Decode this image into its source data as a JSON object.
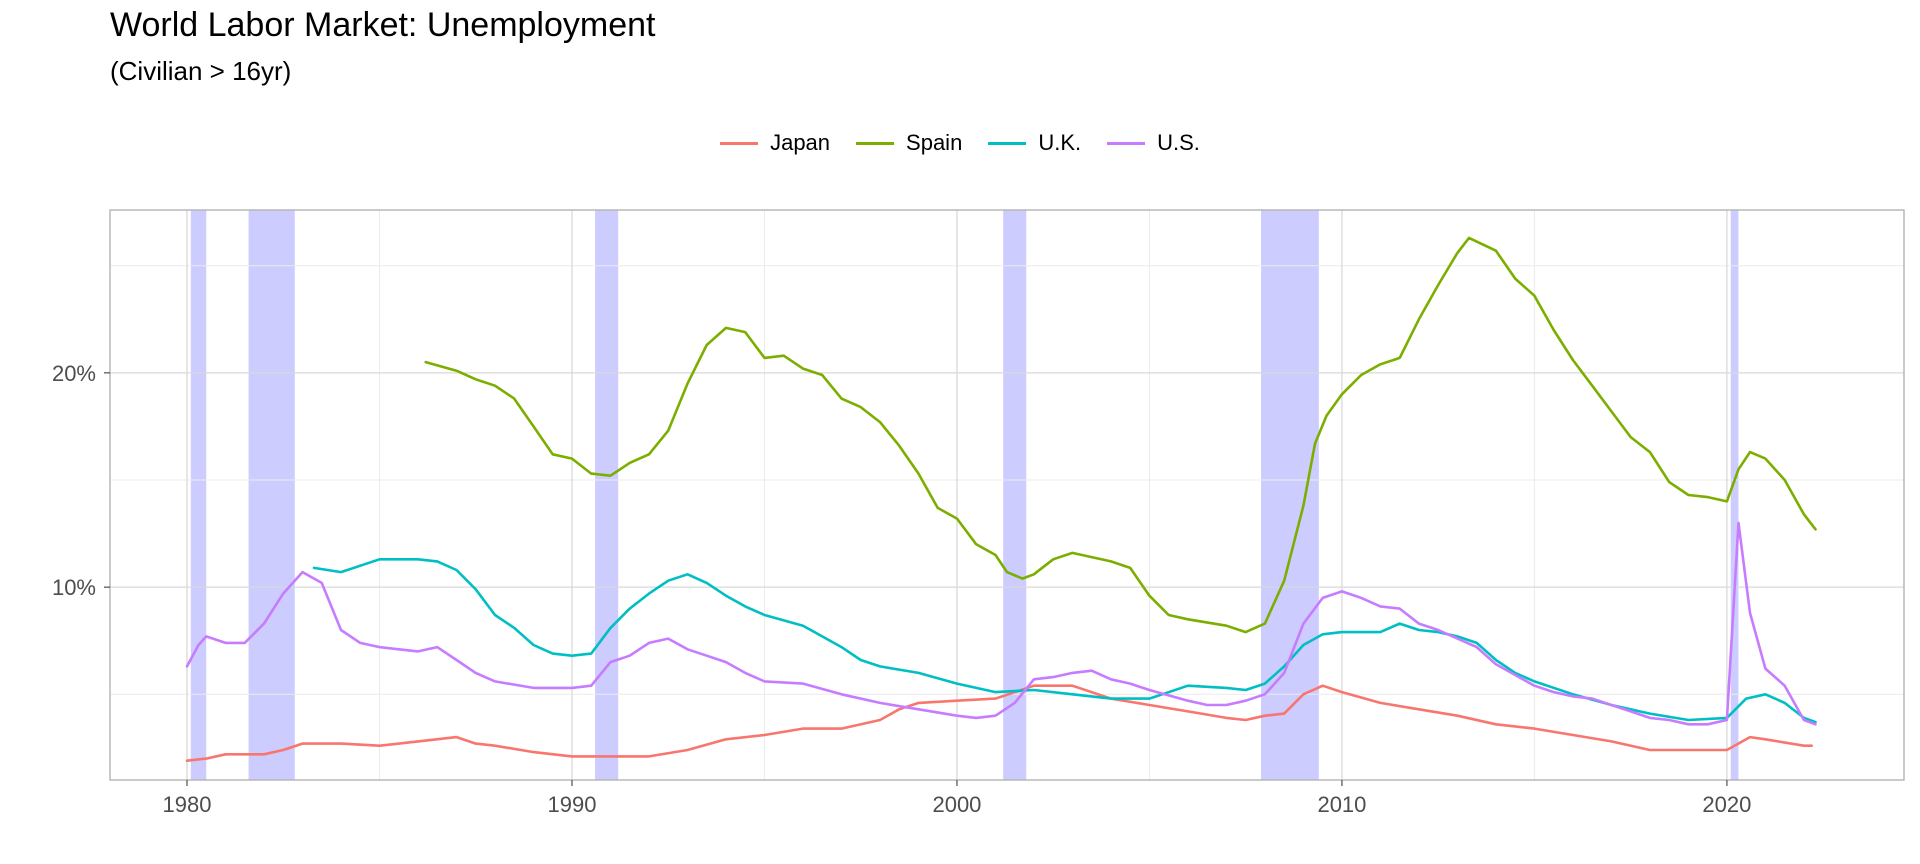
{
  "chart_data": {
    "type": "line",
    "title": "World Labor Market: Unemployment",
    "subtitle": "(Civilian > 16yr)",
    "xlabel": "",
    "ylabel": "",
    "xlim": [
      1978,
      2024.6
    ],
    "ylim": [
      1.0,
      27.6
    ],
    "x_ticks": [
      1980,
      1990,
      2000,
      2010,
      2020
    ],
    "x_tick_labels": [
      "1980",
      "1990",
      "2000",
      "2010",
      "2020"
    ],
    "y_ticks": [
      10,
      20
    ],
    "y_tick_labels": [
      "10%",
      "20%"
    ],
    "y_minor_ticks": [
      5,
      15,
      25
    ],
    "grid": true,
    "legend_position": "top-center",
    "shaded_periods": [
      {
        "start": 1980.1,
        "end": 1980.5
      },
      {
        "start": 1981.6,
        "end": 1982.8
      },
      {
        "start": 1990.6,
        "end": 1991.2
      },
      {
        "start": 2001.2,
        "end": 2001.8
      },
      {
        "start": 2007.9,
        "end": 2009.4
      },
      {
        "start": 2020.1,
        "end": 2020.3
      }
    ],
    "shade_color": "#ccccff",
    "series": [
      {
        "name": "Japan",
        "color": "#f8766d",
        "points": [
          [
            1980,
            1.9
          ],
          [
            1980.5,
            2.0
          ],
          [
            1981,
            2.2
          ],
          [
            1981.5,
            2.2
          ],
          [
            1982,
            2.2
          ],
          [
            1982.5,
            2.4
          ],
          [
            1983,
            2.7
          ],
          [
            1984,
            2.7
          ],
          [
            1985,
            2.6
          ],
          [
            1986,
            2.8
          ],
          [
            1987,
            3.0
          ],
          [
            1987.5,
            2.7
          ],
          [
            1988,
            2.6
          ],
          [
            1989,
            2.3
          ],
          [
            1990,
            2.1
          ],
          [
            1991,
            2.1
          ],
          [
            1992,
            2.1
          ],
          [
            1993,
            2.4
          ],
          [
            1994,
            2.9
          ],
          [
            1995,
            3.1
          ],
          [
            1996,
            3.4
          ],
          [
            1997,
            3.4
          ],
          [
            1998,
            3.8
          ],
          [
            1998.5,
            4.3
          ],
          [
            1999,
            4.6
          ],
          [
            2000,
            4.7
          ],
          [
            2001,
            4.8
          ],
          [
            2002,
            5.4
          ],
          [
            2003,
            5.4
          ],
          [
            2004,
            4.8
          ],
          [
            2005,
            4.5
          ],
          [
            2006,
            4.2
          ],
          [
            2007,
            3.9
          ],
          [
            2007.5,
            3.8
          ],
          [
            2008,
            4.0
          ],
          [
            2008.5,
            4.1
          ],
          [
            2009,
            5.0
          ],
          [
            2009.5,
            5.4
          ],
          [
            2010,
            5.1
          ],
          [
            2011,
            4.6
          ],
          [
            2012,
            4.3
          ],
          [
            2013,
            4.0
          ],
          [
            2014,
            3.6
          ],
          [
            2015,
            3.4
          ],
          [
            2016,
            3.1
          ],
          [
            2017,
            2.8
          ],
          [
            2018,
            2.4
          ],
          [
            2019,
            2.4
          ],
          [
            2020,
            2.4
          ],
          [
            2020.6,
            3.0
          ],
          [
            2021,
            2.9
          ],
          [
            2022,
            2.6
          ],
          [
            2022.2,
            2.6
          ]
        ]
      },
      {
        "name": "Spain",
        "color": "#7cae00",
        "points": [
          [
            1986.2,
            20.5
          ],
          [
            1987,
            20.1
          ],
          [
            1987.5,
            19.7
          ],
          [
            1988,
            19.4
          ],
          [
            1988.5,
            18.8
          ],
          [
            1989,
            17.5
          ],
          [
            1989.5,
            16.2
          ],
          [
            1990,
            16.0
          ],
          [
            1990.5,
            15.3
          ],
          [
            1991,
            15.2
          ],
          [
            1991.5,
            15.8
          ],
          [
            1992,
            16.2
          ],
          [
            1992.5,
            17.3
          ],
          [
            1993,
            19.5
          ],
          [
            1993.5,
            21.3
          ],
          [
            1994,
            22.1
          ],
          [
            1994.5,
            21.9
          ],
          [
            1995,
            20.7
          ],
          [
            1995.5,
            20.8
          ],
          [
            1996,
            20.2
          ],
          [
            1996.5,
            19.9
          ],
          [
            1997,
            18.8
          ],
          [
            1997.5,
            18.4
          ],
          [
            1998,
            17.7
          ],
          [
            1998.5,
            16.6
          ],
          [
            1999,
            15.3
          ],
          [
            1999.5,
            13.7
          ],
          [
            2000,
            13.2
          ],
          [
            2000.5,
            12.0
          ],
          [
            2001,
            11.5
          ],
          [
            2001.3,
            10.7
          ],
          [
            2001.7,
            10.4
          ],
          [
            2002,
            10.6
          ],
          [
            2002.5,
            11.3
          ],
          [
            2003,
            11.6
          ],
          [
            2004,
            11.2
          ],
          [
            2004.5,
            10.9
          ],
          [
            2005,
            9.6
          ],
          [
            2005.5,
            8.7
          ],
          [
            2006,
            8.5
          ],
          [
            2007,
            8.2
          ],
          [
            2007.5,
            7.9
          ],
          [
            2008,
            8.3
          ],
          [
            2008.5,
            10.3
          ],
          [
            2009,
            13.8
          ],
          [
            2009.3,
            16.7
          ],
          [
            2009.6,
            18.0
          ],
          [
            2010,
            19.0
          ],
          [
            2010.5,
            19.9
          ],
          [
            2011,
            20.4
          ],
          [
            2011.5,
            20.7
          ],
          [
            2012,
            22.5
          ],
          [
            2012.5,
            24.1
          ],
          [
            2013,
            25.6
          ],
          [
            2013.3,
            26.3
          ],
          [
            2014,
            25.7
          ],
          [
            2014.5,
            24.4
          ],
          [
            2015,
            23.6
          ],
          [
            2015.5,
            22.0
          ],
          [
            2016,
            20.6
          ],
          [
            2016.5,
            19.4
          ],
          [
            2017,
            18.2
          ],
          [
            2017.5,
            17.0
          ],
          [
            2018,
            16.3
          ],
          [
            2018.5,
            14.9
          ],
          [
            2019,
            14.3
          ],
          [
            2019.5,
            14.2
          ],
          [
            2020,
            14.0
          ],
          [
            2020.3,
            15.5
          ],
          [
            2020.6,
            16.3
          ],
          [
            2021,
            16.0
          ],
          [
            2021.5,
            15.0
          ],
          [
            2022,
            13.4
          ],
          [
            2022.3,
            12.7
          ]
        ]
      },
      {
        "name": "U.K.",
        "color": "#00bfc4",
        "points": [
          [
            1983.3,
            10.9
          ],
          [
            1984,
            10.7
          ],
          [
            1985,
            11.3
          ],
          [
            1986,
            11.3
          ],
          [
            1986.5,
            11.2
          ],
          [
            1987,
            10.8
          ],
          [
            1987.5,
            9.9
          ],
          [
            1988,
            8.7
          ],
          [
            1988.5,
            8.1
          ],
          [
            1989,
            7.3
          ],
          [
            1989.5,
            6.9
          ],
          [
            1990,
            6.8
          ],
          [
            1990.5,
            6.9
          ],
          [
            1991,
            8.1
          ],
          [
            1991.5,
            9.0
          ],
          [
            1992,
            9.7
          ],
          [
            1992.5,
            10.3
          ],
          [
            1993,
            10.6
          ],
          [
            1993.5,
            10.2
          ],
          [
            1994,
            9.6
          ],
          [
            1994.5,
            9.1
          ],
          [
            1995,
            8.7
          ],
          [
            1996,
            8.2
          ],
          [
            1997,
            7.2
          ],
          [
            1997.5,
            6.6
          ],
          [
            1998,
            6.3
          ],
          [
            1999,
            6.0
          ],
          [
            2000,
            5.5
          ],
          [
            2001,
            5.1
          ],
          [
            2002,
            5.2
          ],
          [
            2003,
            5.0
          ],
          [
            2004,
            4.8
          ],
          [
            2005,
            4.8
          ],
          [
            2006,
            5.4
          ],
          [
            2007,
            5.3
          ],
          [
            2007.5,
            5.2
          ],
          [
            2008,
            5.5
          ],
          [
            2008.5,
            6.3
          ],
          [
            2009,
            7.3
          ],
          [
            2009.5,
            7.8
          ],
          [
            2010,
            7.9
          ],
          [
            2011,
            7.9
          ],
          [
            2011.5,
            8.3
          ],
          [
            2012,
            8.0
          ],
          [
            2012.5,
            7.9
          ],
          [
            2013,
            7.7
          ],
          [
            2013.5,
            7.4
          ],
          [
            2014,
            6.6
          ],
          [
            2014.5,
            6.0
          ],
          [
            2015,
            5.6
          ],
          [
            2016,
            5.0
          ],
          [
            2017,
            4.5
          ],
          [
            2018,
            4.1
          ],
          [
            2019,
            3.8
          ],
          [
            2020,
            3.9
          ],
          [
            2020.5,
            4.8
          ],
          [
            2021,
            5.0
          ],
          [
            2021.5,
            4.6
          ],
          [
            2022,
            3.9
          ],
          [
            2022.3,
            3.7
          ]
        ]
      },
      {
        "name": "U.S.",
        "color": "#c77cff",
        "points": [
          [
            1980,
            6.3
          ],
          [
            1980.3,
            7.3
          ],
          [
            1980.5,
            7.7
          ],
          [
            1981,
            7.4
          ],
          [
            1981.5,
            7.4
          ],
          [
            1982,
            8.3
          ],
          [
            1982.5,
            9.7
          ],
          [
            1983,
            10.7
          ],
          [
            1983.5,
            10.2
          ],
          [
            1984,
            8.0
          ],
          [
            1984.5,
            7.4
          ],
          [
            1985,
            7.2
          ],
          [
            1986,
            7.0
          ],
          [
            1986.5,
            7.2
          ],
          [
            1987,
            6.6
          ],
          [
            1987.5,
            6.0
          ],
          [
            1988,
            5.6
          ],
          [
            1989,
            5.3
          ],
          [
            1990,
            5.3
          ],
          [
            1990.5,
            5.4
          ],
          [
            1991,
            6.5
          ],
          [
            1991.5,
            6.8
          ],
          [
            1992,
            7.4
          ],
          [
            1992.5,
            7.6
          ],
          [
            1993,
            7.1
          ],
          [
            1993.5,
            6.8
          ],
          [
            1994,
            6.5
          ],
          [
            1994.5,
            6.0
          ],
          [
            1995,
            5.6
          ],
          [
            1996,
            5.5
          ],
          [
            1997,
            5.0
          ],
          [
            1998,
            4.6
          ],
          [
            1999,
            4.3
          ],
          [
            2000,
            4.0
          ],
          [
            2000.5,
            3.9
          ],
          [
            2001,
            4.0
          ],
          [
            2001.5,
            4.6
          ],
          [
            2002,
            5.7
          ],
          [
            2002.5,
            5.8
          ],
          [
            2003,
            6.0
          ],
          [
            2003.5,
            6.1
          ],
          [
            2004,
            5.7
          ],
          [
            2004.5,
            5.5
          ],
          [
            2005,
            5.2
          ],
          [
            2006,
            4.7
          ],
          [
            2006.5,
            4.5
          ],
          [
            2007,
            4.5
          ],
          [
            2007.5,
            4.7
          ],
          [
            2008,
            5.0
          ],
          [
            2008.5,
            6.0
          ],
          [
            2009,
            8.3
          ],
          [
            2009.5,
            9.5
          ],
          [
            2010,
            9.8
          ],
          [
            2010.5,
            9.5
          ],
          [
            2011,
            9.1
          ],
          [
            2011.5,
            9.0
          ],
          [
            2012,
            8.3
          ],
          [
            2012.5,
            8.0
          ],
          [
            2013,
            7.6
          ],
          [
            2013.5,
            7.2
          ],
          [
            2014,
            6.4
          ],
          [
            2014.5,
            5.9
          ],
          [
            2015,
            5.4
          ],
          [
            2015.5,
            5.1
          ],
          [
            2016,
            4.9
          ],
          [
            2016.5,
            4.8
          ],
          [
            2017,
            4.5
          ],
          [
            2017.5,
            4.2
          ],
          [
            2018,
            3.9
          ],
          [
            2018.5,
            3.8
          ],
          [
            2019,
            3.6
          ],
          [
            2019.5,
            3.6
          ],
          [
            2020,
            3.8
          ],
          [
            2020.3,
            13.0
          ],
          [
            2020.6,
            8.8
          ],
          [
            2021,
            6.2
          ],
          [
            2021.5,
            5.4
          ],
          [
            2022,
            3.8
          ],
          [
            2022.3,
            3.6
          ]
        ]
      }
    ]
  }
}
